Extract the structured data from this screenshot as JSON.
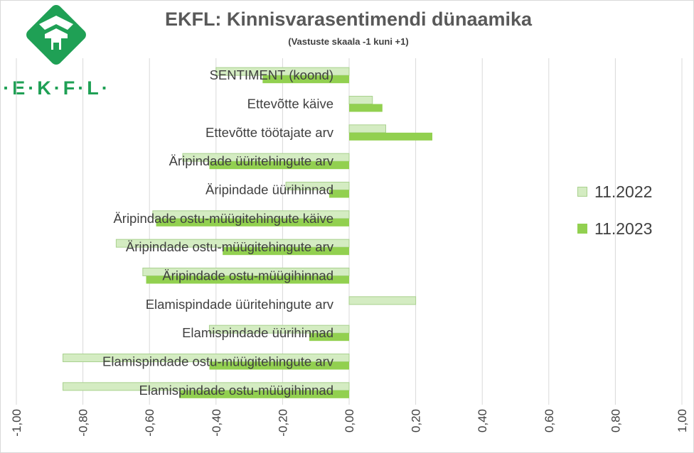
{
  "header": {
    "title": "EKFL: Kinnisvarasentimendi dünaamika",
    "subtitle": "(Vastuste skaala -1 kuni +1)",
    "logo_text": "·E·K·F·L·"
  },
  "colors": {
    "series_2022": "#d4ecc2",
    "series_2022_border": "#a9d18e",
    "series_2023": "#92d050",
    "grid": "#d9d9d9",
    "logo": "#1fa055"
  },
  "chart_data": {
    "type": "bar",
    "orientation": "horizontal",
    "title": "EKFL: Kinnisvarasentimendi dünaamika",
    "subtitle": "(Vastuste skaala -1 kuni +1)",
    "xlim": [
      -1.0,
      1.0
    ],
    "x_ticks": [
      "-1,00",
      "-0,80",
      "-0,60",
      "-0,40",
      "-0,20",
      "0,00",
      "0,20",
      "0,40",
      "0,60",
      "0,80",
      "1,00"
    ],
    "x_tick_values": [
      -1.0,
      -0.8,
      -0.6,
      -0.4,
      -0.2,
      0.0,
      0.2,
      0.4,
      0.6,
      0.8,
      1.0
    ],
    "grid": true,
    "legend_position": "right",
    "categories": [
      "SENTIMENT (koond)",
      "Ettevõtte käive",
      "Ettevõtte töötajate arv",
      "Äripindade üüritehingute arv",
      "Äripindade üürihinnad",
      "Äripindade ostu-müügitehingute käive",
      "Äripindade ostu-müügitehingute arv",
      "Äripindade ostu-müügihinnad",
      "Elamispindade üüritehingute arv",
      "Elamispindade üürihinnad",
      "Elamispindade ostu-müügitehingute arv",
      "Elamispindade ostu-müügihinnad"
    ],
    "series": [
      {
        "name": "11.2022",
        "values": [
          -0.4,
          0.07,
          0.11,
          -0.5,
          -0.19,
          -0.59,
          -0.7,
          -0.62,
          0.2,
          -0.42,
          -0.86,
          -0.86
        ]
      },
      {
        "name": "11.2023",
        "values": [
          -0.26,
          0.1,
          0.25,
          -0.42,
          -0.06,
          -0.58,
          -0.38,
          -0.61,
          0.0,
          -0.12,
          -0.42,
          -0.51
        ]
      }
    ]
  }
}
